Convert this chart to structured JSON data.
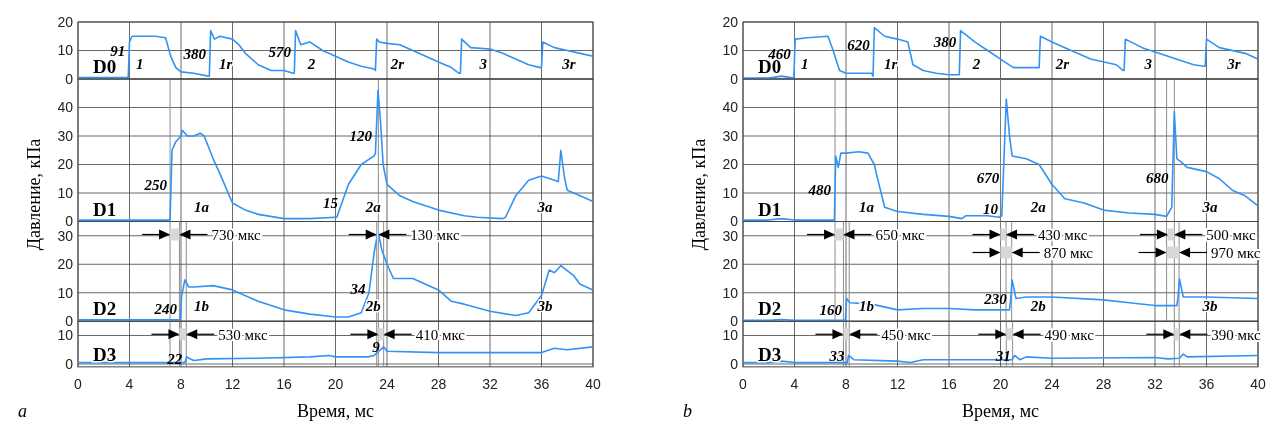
{
  "chart_data": [
    {
      "type": "line",
      "xlim": [
        0,
        40
      ],
      "xticks": [
        0,
        4,
        8,
        12,
        16,
        20,
        24,
        28,
        32,
        36,
        40
      ],
      "ylim": [
        0,
        20
      ],
      "yticks": [
        0,
        10,
        20
      ],
      "grid": true,
      "tick_labels": "y",
      "series": [
        {
          "color": "#3393f5",
          "x": [
            0,
            3.9,
            4.0,
            4.2,
            5,
            6,
            6.8,
            7.2,
            7.6,
            8,
            9,
            10.1,
            10.2,
            10.3,
            10.6,
            11,
            12,
            12.5,
            13,
            14,
            15,
            16,
            16.7,
            16.8,
            16.9,
            17.3,
            18,
            19,
            20,
            21,
            22,
            23,
            23.1,
            23.2,
            23.4,
            24,
            25,
            26,
            27,
            28,
            29,
            29.6,
            29.7,
            29.8,
            30.5,
            32,
            33,
            34,
            35,
            35.9,
            36.0,
            36.1,
            37,
            38,
            39,
            40
          ],
          "values": [
            0.5,
            0.5,
            13,
            15,
            15,
            15,
            14.5,
            8,
            4,
            2.5,
            2,
            1,
            1,
            17,
            14,
            15,
            14,
            12,
            9,
            5,
            3,
            3,
            2,
            2,
            17,
            12,
            13,
            10,
            8,
            6,
            4.5,
            3.5,
            3,
            14,
            13,
            12.5,
            12,
            10,
            8,
            6,
            4,
            2,
            2,
            14,
            11,
            10.5,
            9,
            7,
            5,
            4,
            4,
            13,
            11,
            10,
            9,
            8
          ]
        }
      ],
      "annotations": [
        "D0",
        "1",
        "1r",
        "2",
        "2r",
        "3",
        "3r",
        {
          "text": "91",
          "x": 3.98,
          "y": 10
        },
        {
          "text": "380",
          "x": 10.25,
          "y": 9
        },
        {
          "text": "570",
          "x": 16.85,
          "y": 9.5
        }
      ]
    },
    {
      "type": "line",
      "xlim": [
        0,
        40
      ],
      "xticks": [
        0,
        4,
        8,
        12,
        16,
        20,
        24,
        28,
        32,
        36,
        40
      ],
      "ylim": [
        0,
        50
      ],
      "yticks": [
        0,
        10,
        20,
        30,
        40
      ],
      "grid": true,
      "tick_labels": "y",
      "ylabel": "Давление, кПа",
      "series": [
        {
          "color": "#3393f5",
          "x": [
            0,
            7.0,
            7.15,
            7.3,
            7.6,
            8.0,
            8.1,
            8.5,
            9,
            9.5,
            9.8,
            10.5,
            11,
            12,
            13,
            14,
            16,
            18,
            20,
            20.1,
            21,
            22,
            23,
            23.1,
            23.3,
            23.5,
            23.7,
            24,
            25,
            26,
            28,
            30,
            31,
            33,
            33.2,
            34,
            35,
            36,
            37,
            37.3,
            37.5,
            37.8,
            38,
            39,
            40
          ],
          "values": [
            0.5,
            0.5,
            0.5,
            25,
            28,
            30,
            32,
            30,
            30,
            31,
            30,
            22,
            17,
            6.5,
            4,
            2.5,
            1,
            1,
            1.5,
            1.5,
            13,
            20,
            23,
            24,
            46,
            35,
            20,
            13,
            9,
            7,
            4,
            2,
            1.5,
            1,
            1.5,
            9,
            14.5,
            16,
            14.5,
            14,
            25,
            15,
            11,
            9,
            7
          ]
        }
      ],
      "ref_lines": [
        {
          "axis": "x",
          "value": 7.15,
          "color": "#808080"
        },
        {
          "axis": "x",
          "value": 23.33,
          "color": "#808080"
        }
      ],
      "annotations": [
        "D1",
        "1a",
        "2a",
        "3a",
        {
          "text": "250",
          "x": 7.23,
          "y": 13
        },
        {
          "text": "15",
          "x": 20.5,
          "y": 6.6
        },
        {
          "text": "120",
          "x": 23.15,
          "y": 30
        }
      ]
    },
    {
      "type": "line",
      "xlim": [
        0,
        40
      ],
      "xticks": [
        0,
        4,
        8,
        12,
        16,
        20,
        24,
        28,
        32,
        36,
        40
      ],
      "ylim": [
        0,
        35
      ],
      "yticks": [
        0,
        10,
        20,
        30
      ],
      "grid": true,
      "tick_labels": "y",
      "series": [
        {
          "color": "#3393f5",
          "x": [
            0,
            7.95,
            8.05,
            8.3,
            8.6,
            9,
            10.5,
            12,
            14,
            16,
            18,
            20,
            21,
            22,
            22.6,
            23.0,
            23.3,
            23.6,
            24,
            24.5,
            26,
            27,
            28,
            29,
            30,
            32,
            34,
            35,
            36,
            36.6,
            37,
            37.5,
            38.5,
            39,
            40
          ],
          "values": [
            0.5,
            0.5,
            9,
            14.5,
            12,
            12,
            12.5,
            11,
            7,
            4,
            2.5,
            1.5,
            1.5,
            3,
            10,
            24,
            31.5,
            25,
            20,
            15,
            15,
            13,
            11,
            7,
            6,
            3.5,
            2,
            3,
            9,
            18,
            17,
            19.5,
            16,
            13,
            11
          ]
        }
      ],
      "ref_lines": [
        {
          "axis": "x",
          "value": 7.15,
          "color": "#808080"
        },
        {
          "axis": "x",
          "value": 7.88,
          "color": "#808080"
        },
        {
          "axis": "x",
          "value": 8.41,
          "color": "#808080"
        },
        {
          "axis": "x",
          "value": 23.2,
          "color": "#808080"
        },
        {
          "axis": "x",
          "value": 23.33,
          "color": "#808080"
        },
        {
          "axis": "x",
          "value": 23.74,
          "color": "#808080"
        }
      ],
      "bands": [
        {
          "axis": "x",
          "from": 7.15,
          "to": 7.88,
          "label": "730 мкс"
        },
        {
          "axis": "x",
          "from": 23.2,
          "to": 23.33,
          "label": "130 мкс"
        }
      ],
      "annotations": [
        "D2",
        "1b",
        "2b",
        "3b",
        {
          "text": "240",
          "x": 8.0,
          "y": 4.5
        },
        {
          "text": "34",
          "x": 22.64,
          "y": 11.5
        }
      ]
    },
    {
      "type": "line",
      "xlim": [
        0,
        40
      ],
      "xticks": [
        0,
        4,
        8,
        12,
        16,
        20,
        24,
        28,
        32,
        36,
        40
      ],
      "ylim": [
        -1,
        15
      ],
      "yticks": [
        0,
        10
      ],
      "grid": true,
      "xlabel": "Время, мс",
      "series": [
        {
          "color": "#3393f5",
          "x": [
            0,
            8.3,
            8.45,
            8.6,
            9,
            10,
            14,
            18,
            19.5,
            20,
            22.5,
            23.0,
            23.5,
            23.75,
            24,
            28,
            32,
            36,
            37,
            38,
            40
          ],
          "values": [
            0.5,
            0.5,
            2.5,
            2,
            1.2,
            1.8,
            2,
            2.5,
            3,
            2.5,
            2.5,
            3,
            5,
            6,
            4.5,
            4,
            4,
            4,
            5.5,
            5,
            6
          ]
        }
      ],
      "ref_lines": [
        {
          "axis": "x",
          "value": 7.15,
          "color": "#808080"
        },
        {
          "axis": "x",
          "value": 7.88,
          "color": "#808080"
        },
        {
          "axis": "x",
          "value": 8.41,
          "color": "#808080"
        },
        {
          "axis": "x",
          "value": 23.2,
          "color": "#808080"
        },
        {
          "axis": "x",
          "value": 23.33,
          "color": "#808080"
        },
        {
          "axis": "x",
          "value": 23.74,
          "color": "#808080"
        }
      ],
      "bands": [
        {
          "axis": "x",
          "from": 7.88,
          "to": 8.41,
          "label": "530 мкс"
        },
        {
          "axis": "x",
          "from": 23.33,
          "to": 23.74,
          "label": "410 мкс"
        }
      ],
      "title": "a",
      "annotations": [
        "D3",
        {
          "text": "22",
          "x": 8.41,
          "y": 2
        },
        {
          "text": "9",
          "x": 23.75,
          "y": 6
        }
      ]
    },
    {
      "type": "line",
      "xlim": [
        0,
        40
      ],
      "xticks": [
        0,
        4,
        8,
        12,
        16,
        20,
        24,
        28,
        32,
        36,
        40
      ],
      "ylim": [
        0,
        20
      ],
      "yticks": [
        0,
        10,
        20
      ],
      "grid": true,
      "tick_labels": "y",
      "series": [
        {
          "color": "#3393f5",
          "x": [
            0,
            2,
            3,
            3.95,
            4.05,
            5,
            6.6,
            7.0,
            7.5,
            8,
            10.0,
            10.1,
            10.2,
            11,
            12,
            12.8,
            13.2,
            14,
            15,
            16,
            16.7,
            16.8,
            16.9,
            18,
            19,
            20,
            21,
            22,
            23.0,
            23.1,
            24,
            25,
            27,
            29,
            29.5,
            29.6,
            29.7,
            31,
            33,
            35,
            35.8,
            35.9,
            36.0,
            37,
            39,
            40
          ],
          "values": [
            0.3,
            0.3,
            1,
            0.3,
            14,
            14.5,
            15,
            10,
            3,
            2,
            2,
            1,
            18,
            15,
            14,
            13,
            5,
            3,
            2,
            1.5,
            1.5,
            1.5,
            17,
            13,
            10,
            7,
            4,
            4,
            4,
            15,
            13,
            11,
            7,
            5,
            3,
            3,
            14,
            11,
            8,
            5,
            4.5,
            4.5,
            14,
            11,
            9,
            7
          ]
        }
      ],
      "annotations": [
        "D0",
        "1",
        "1r",
        "2",
        "2r",
        "3",
        "3r",
        {
          "text": "460",
          "x": 4.01,
          "y": 9
        },
        {
          "text": "620",
          "x": 10.16,
          "y": 12
        },
        {
          "text": "380",
          "x": 16.87,
          "y": 13
        }
      ]
    },
    {
      "type": "line",
      "xlim": [
        0,
        40
      ],
      "xticks": [
        0,
        4,
        8,
        12,
        16,
        20,
        24,
        28,
        32,
        36,
        40
      ],
      "ylim": [
        0,
        50
      ],
      "yticks": [
        0,
        10,
        20,
        30,
        40
      ],
      "grid": true,
      "tick_labels": "y",
      "ylabel": "Давление, кПа",
      "series": [
        {
          "color": "#3393f5",
          "x": [
            0,
            2,
            3,
            4,
            7.1,
            7.2,
            7.4,
            7.6,
            8,
            9,
            9.7,
            10.2,
            10.4,
            11,
            12,
            14,
            16,
            17,
            17.3,
            19,
            19.9,
            20.1,
            20.45,
            20.7,
            20.9,
            22,
            23,
            24,
            25,
            26.5,
            28,
            30,
            32,
            32.9,
            33.3,
            33.5,
            33.7,
            34,
            34.5,
            36,
            37,
            38,
            39,
            40
          ],
          "values": [
            0.5,
            0.5,
            1,
            0.5,
            0.5,
            23,
            19,
            24,
            24,
            24.5,
            24,
            20,
            16,
            5,
            3.5,
            2.5,
            1.8,
            1,
            2,
            2,
            1.5,
            2,
            43,
            30,
            23,
            22,
            20,
            13,
            8,
            6.5,
            4,
            3,
            2.5,
            1.8,
            5,
            38.5,
            22,
            21,
            19,
            17.5,
            15,
            11,
            9,
            5.5
          ]
        }
      ],
      "ref_lines": [
        {
          "axis": "x",
          "value": 7.15,
          "color": "#808080"
        },
        {
          "axis": "x",
          "value": 20.0,
          "color": "#808080"
        },
        {
          "axis": "x",
          "value": 32.9,
          "color": "#808080"
        },
        {
          "axis": "x",
          "value": 33.5,
          "color": "#808080"
        }
      ],
      "annotations": [
        "D1",
        "1a",
        "2a",
        "3a",
        {
          "text": "480",
          "x": 7.15,
          "y": 11
        },
        {
          "text": "670",
          "x": 20.22,
          "y": 15.5
        },
        {
          "text": "10",
          "x": 20.12,
          "y": 4.5
        },
        {
          "text": "680",
          "x": 33.36,
          "y": 15.5
        }
      ]
    },
    {
      "type": "line",
      "xlim": [
        0,
        40
      ],
      "xticks": [
        0,
        4,
        8,
        12,
        16,
        20,
        24,
        28,
        32,
        36,
        40
      ],
      "ylim": [
        0,
        35
      ],
      "yticks": [
        0,
        10,
        20,
        30
      ],
      "grid": true,
      "tick_labels": "y",
      "series": [
        {
          "color": "#3393f5",
          "x": [
            0,
            2,
            3,
            4,
            7.95,
            8.05,
            8.3,
            10,
            12,
            14,
            16,
            18,
            20.7,
            20.8,
            20.9,
            21.2,
            22,
            24,
            28,
            30,
            32,
            33.7,
            33.8,
            33.9,
            34.2,
            36,
            40
          ],
          "values": [
            0.3,
            0.3,
            0.6,
            0.3,
            0.3,
            8,
            6.5,
            6,
            4,
            4.5,
            4.5,
            4,
            4,
            8,
            14.5,
            8,
            8.5,
            8.5,
            7.5,
            6.5,
            5.5,
            5.5,
            9,
            14.8,
            8.5,
            8.5,
            8
          ]
        }
      ],
      "ref_lines": [
        {
          "axis": "x",
          "value": 7.15,
          "color": "#808080"
        },
        {
          "axis": "x",
          "value": 7.8,
          "color": "#808080"
        },
        {
          "axis": "x",
          "value": 8.25,
          "color": "#808080"
        },
        {
          "axis": "x",
          "value": 20.0,
          "color": "#808080"
        },
        {
          "axis": "x",
          "value": 20.43,
          "color": "#808080"
        },
        {
          "axis": "x",
          "value": 20.87,
          "color": "#808080"
        },
        {
          "axis": "x",
          "value": 32.9,
          "color": "#808080"
        },
        {
          "axis": "x",
          "value": 33.5,
          "color": "#808080"
        },
        {
          "axis": "x",
          "value": 33.87,
          "color": "#808080"
        }
      ],
      "bands": [
        {
          "axis": "x",
          "from": 7.15,
          "to": 7.8,
          "label": "650 мкс"
        },
        {
          "axis": "x",
          "from": 20.0,
          "to": 20.43,
          "label": "430 мкс"
        },
        {
          "axis": "x",
          "from": 33.0,
          "to": 33.5,
          "label": "500 мкс"
        },
        {
          "axis": "x",
          "from": 20.0,
          "to": 20.87,
          "label": "870 мкс"
        },
        {
          "axis": "x",
          "from": 32.9,
          "to": 33.87,
          "label": "970 мкс"
        }
      ],
      "annotations": [
        "D2",
        "1b",
        "2b",
        "3b",
        {
          "text": "160",
          "x": 8.0,
          "y": 4
        },
        {
          "text": "230",
          "x": 20.8,
          "y": 8
        }
      ]
    },
    {
      "type": "line",
      "xlim": [
        0,
        40
      ],
      "xticks": [
        0,
        4,
        8,
        12,
        16,
        20,
        24,
        28,
        32,
        36,
        40
      ],
      "ylim": [
        -1,
        15
      ],
      "yticks": [
        0,
        10
      ],
      "grid": true,
      "xlabel": "Время, мс",
      "series": [
        {
          "color": "#3393f5",
          "x": [
            0,
            2,
            3,
            4,
            8.1,
            8.2,
            8.6,
            12,
            13,
            14,
            20,
            20.9,
            21.1,
            21.5,
            22,
            24,
            32,
            33,
            33.9,
            34.2,
            34.5,
            40
          ],
          "values": [
            0.5,
            0.5,
            1,
            0.5,
            0.5,
            3,
            1.5,
            1,
            0.5,
            1.5,
            1.5,
            1.5,
            3,
            1.5,
            2.5,
            2,
            2.3,
            1.8,
            2,
            3.5,
            2.5,
            3
          ]
        }
      ],
      "ref_lines": [
        {
          "axis": "x",
          "value": 7.8,
          "color": "#808080"
        },
        {
          "axis": "x",
          "value": 8.25,
          "color": "#808080"
        },
        {
          "axis": "x",
          "value": 20.45,
          "color": "#808080"
        },
        {
          "axis": "x",
          "value": 20.94,
          "color": "#808080"
        },
        {
          "axis": "x",
          "value": 33.5,
          "color": "#808080"
        },
        {
          "axis": "x",
          "value": 33.89,
          "color": "#808080"
        }
      ],
      "bands": [
        {
          "axis": "x",
          "from": 7.8,
          "to": 8.25,
          "label": "450 мкс"
        },
        {
          "axis": "x",
          "from": 20.45,
          "to": 20.94,
          "label": "490 мкс"
        },
        {
          "axis": "x",
          "from": 33.5,
          "to": 33.89,
          "label": "390 мкс"
        }
      ],
      "title": "b",
      "annotations": [
        "D3",
        {
          "text": "33",
          "x": 8.2,
          "y": 3
        },
        {
          "text": "31",
          "x": 21.1,
          "y": 3
        }
      ]
    }
  ]
}
